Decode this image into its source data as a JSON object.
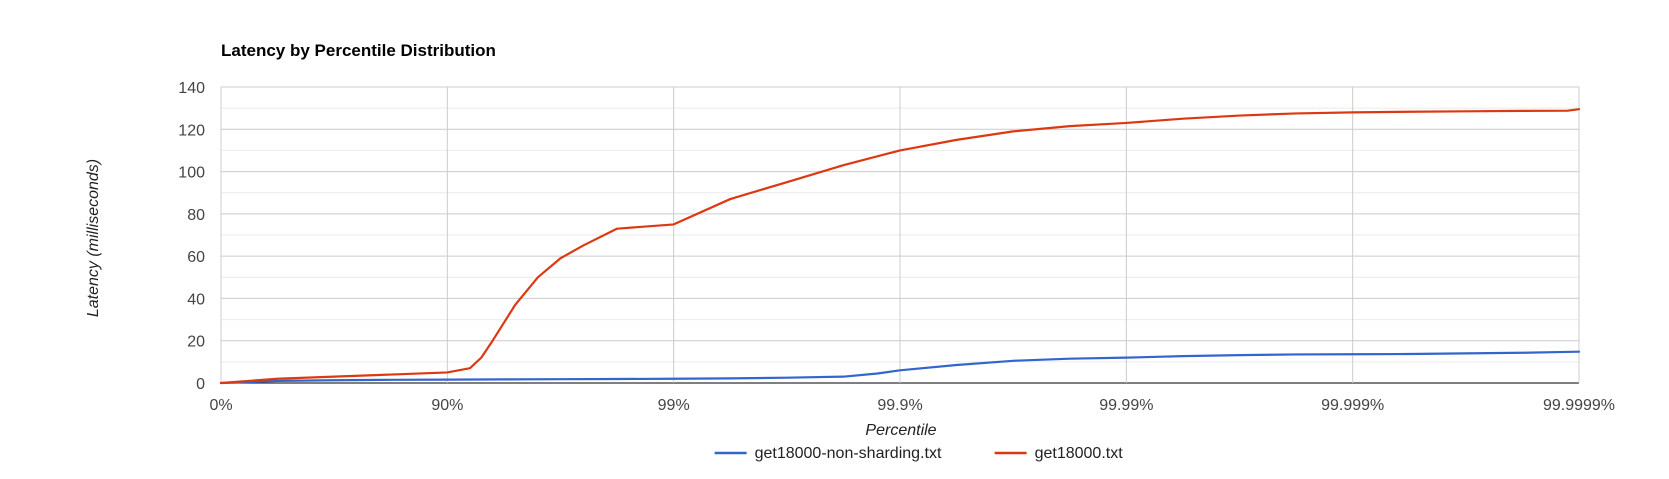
{
  "chart_data": {
    "type": "line",
    "title": "Latency by Percentile Distribution",
    "xlabel": "Percentile",
    "ylabel": "Latency (milliseconds)",
    "ylim": [
      0,
      140
    ],
    "yticks": [
      0,
      20,
      40,
      60,
      80,
      100,
      120,
      140
    ],
    "xscale": "log-nines",
    "xticks": [
      {
        "nines": 0,
        "label": "0%"
      },
      {
        "nines": 1,
        "label": "90%"
      },
      {
        "nines": 2,
        "label": "99%"
      },
      {
        "nines": 3,
        "label": "99.9%"
      },
      {
        "nines": 4,
        "label": "99.99%"
      },
      {
        "nines": 5,
        "label": "99.999%"
      },
      {
        "nines": 6,
        "label": "99.9999%"
      }
    ],
    "grid": true,
    "legend_position": "bottom",
    "colors": {
      "series_1": "#3366cc",
      "series_2": "#dc3912",
      "gridline": "#cccccc",
      "minor_gridline": "#ebebeb",
      "baseline": "#333333"
    },
    "series": [
      {
        "name": "get18000-non-sharding.txt",
        "color": "#3366cc",
        "nines": [
          0,
          0.25,
          0.5,
          0.75,
          1.0,
          1.25,
          1.5,
          1.75,
          2.0,
          2.25,
          2.5,
          2.75,
          2.9,
          3.0,
          3.25,
          3.5,
          3.75,
          4.0,
          4.25,
          4.5,
          4.75,
          5.0,
          5.25,
          5.5,
          5.75,
          6.0
        ],
        "values": [
          0,
          1.0,
          1.3,
          1.5,
          1.6,
          1.7,
          1.8,
          1.9,
          2.0,
          2.2,
          2.5,
          3.0,
          4.5,
          6.0,
          8.5,
          10.5,
          11.5,
          12.0,
          12.7,
          13.2,
          13.5,
          13.6,
          13.7,
          14.0,
          14.3,
          14.8
        ]
      },
      {
        "name": "get18000.txt",
        "color": "#dc3912",
        "nines": [
          0,
          0.25,
          0.5,
          0.75,
          1.0,
          1.1,
          1.15,
          1.2,
          1.3,
          1.4,
          1.5,
          1.6,
          1.75,
          2.0,
          2.25,
          2.5,
          2.75,
          3.0,
          3.25,
          3.5,
          3.75,
          4.0,
          4.25,
          4.5,
          4.75,
          5.0,
          5.25,
          5.5,
          5.75,
          5.95,
          6.0
        ],
        "values": [
          0,
          2.0,
          3.0,
          4.0,
          5.0,
          7.0,
          12.0,
          20.0,
          37.0,
          50.0,
          59.0,
          65.0,
          73.0,
          75.0,
          87.0,
          95.0,
          103.0,
          110.0,
          115.0,
          119.0,
          121.5,
          123.0,
          125.0,
          126.5,
          127.5,
          128.0,
          128.3,
          128.5,
          128.7,
          128.8,
          129.5
        ]
      }
    ]
  }
}
